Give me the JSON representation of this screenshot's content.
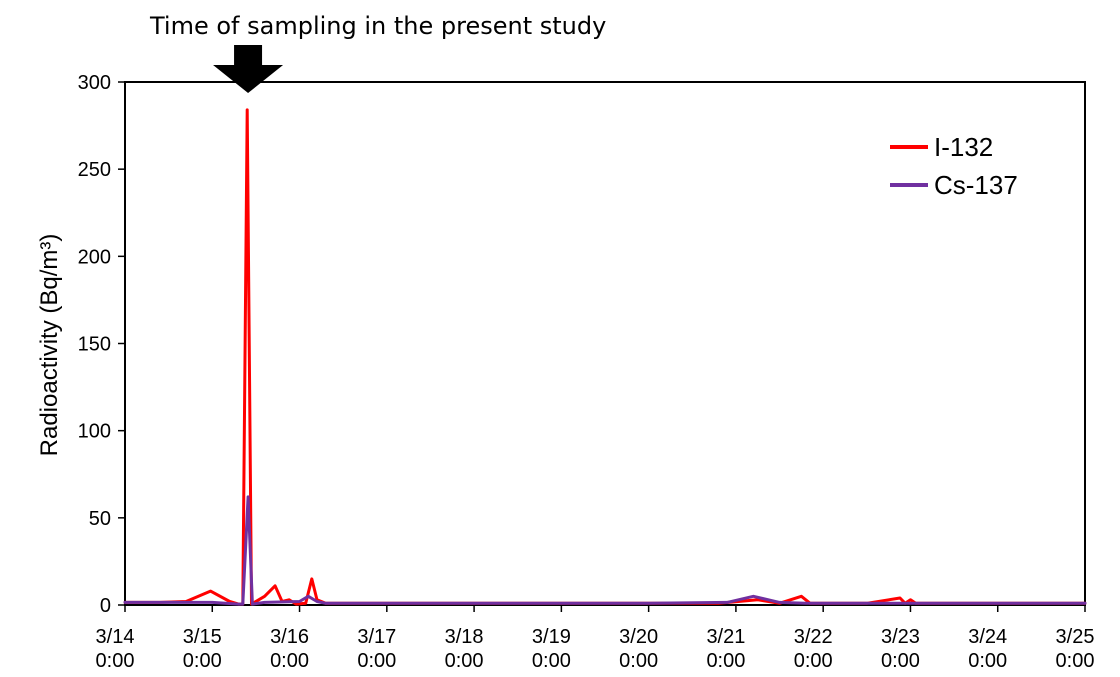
{
  "annotation": "Time of sampling in the present study",
  "chart_data": {
    "type": "line",
    "xlabel": "",
    "ylabel": "Radioactivity (Bq/m³)",
    "ylim": [
      0,
      300
    ],
    "yticks": [
      "0",
      "50",
      "100",
      "150",
      "200",
      "250",
      "300"
    ],
    "xticks": [
      {
        "x": 0,
        "line1": "3/14",
        "line2": "0:00"
      },
      {
        "x": 1,
        "line1": "3/15",
        "line2": "0:00"
      },
      {
        "x": 2,
        "line1": "3/16",
        "line2": "0:00"
      },
      {
        "x": 3,
        "line1": "3/17",
        "line2": "0:00"
      },
      {
        "x": 4,
        "line1": "3/18",
        "line2": "0:00"
      },
      {
        "x": 5,
        "line1": "3/19",
        "line2": "0:00"
      },
      {
        "x": 6,
        "line1": "3/20",
        "line2": "0:00"
      },
      {
        "x": 7,
        "line1": "3/21",
        "line2": "0:00"
      },
      {
        "x": 8,
        "line1": "3/22",
        "line2": "0:00"
      },
      {
        "x": 9,
        "line1": "3/23",
        "line2": "0:00"
      },
      {
        "x": 10,
        "line1": "3/24",
        "line2": "0:00"
      },
      {
        "x": 11,
        "line1": "3/25",
        "line2": "0:00"
      }
    ],
    "xlim": [
      0,
      11
    ],
    "arrow_x": 1.41,
    "legend_position": "top-right",
    "grid": false,
    "series": [
      {
        "name": "I-132",
        "color": "#ff0000",
        "points": [
          [
            0,
            1.5
          ],
          [
            0.4,
            1.5
          ],
          [
            0.7,
            2
          ],
          [
            0.98,
            8
          ],
          [
            1.2,
            2
          ],
          [
            1.3,
            0.5
          ],
          [
            1.35,
            0.5
          ],
          [
            1.4,
            284
          ],
          [
            1.45,
            0.5
          ],
          [
            1.6,
            5
          ],
          [
            1.72,
            11
          ],
          [
            1.8,
            2
          ],
          [
            1.88,
            3
          ],
          [
            1.96,
            0.5
          ],
          [
            2.07,
            1
          ],
          [
            2.14,
            15
          ],
          [
            2.2,
            3
          ],
          [
            2.3,
            1
          ],
          [
            3,
            1
          ],
          [
            6,
            1
          ],
          [
            6.8,
            1
          ],
          [
            7.25,
            3
          ],
          [
            7.5,
            1
          ],
          [
            7.75,
            5
          ],
          [
            7.85,
            1
          ],
          [
            8.5,
            1
          ],
          [
            8.88,
            4
          ],
          [
            8.94,
            1
          ],
          [
            9.0,
            3
          ],
          [
            9.06,
            1
          ],
          [
            9.5,
            1
          ],
          [
            11,
            1
          ]
        ]
      },
      {
        "name": "Cs-137",
        "color": "#7030a0",
        "points": [
          [
            0,
            1.5
          ],
          [
            1.0,
            1.5
          ],
          [
            1.3,
            0.5
          ],
          [
            1.35,
            0.5
          ],
          [
            1.41,
            62
          ],
          [
            1.46,
            0.5
          ],
          [
            1.6,
            1.5
          ],
          [
            2.0,
            2
          ],
          [
            2.1,
            5
          ],
          [
            2.2,
            2
          ],
          [
            2.3,
            1
          ],
          [
            6,
            1
          ],
          [
            6.9,
            1.5
          ],
          [
            7.2,
            5
          ],
          [
            7.5,
            1.5
          ],
          [
            7.8,
            1
          ],
          [
            11,
            1
          ]
        ]
      }
    ]
  }
}
